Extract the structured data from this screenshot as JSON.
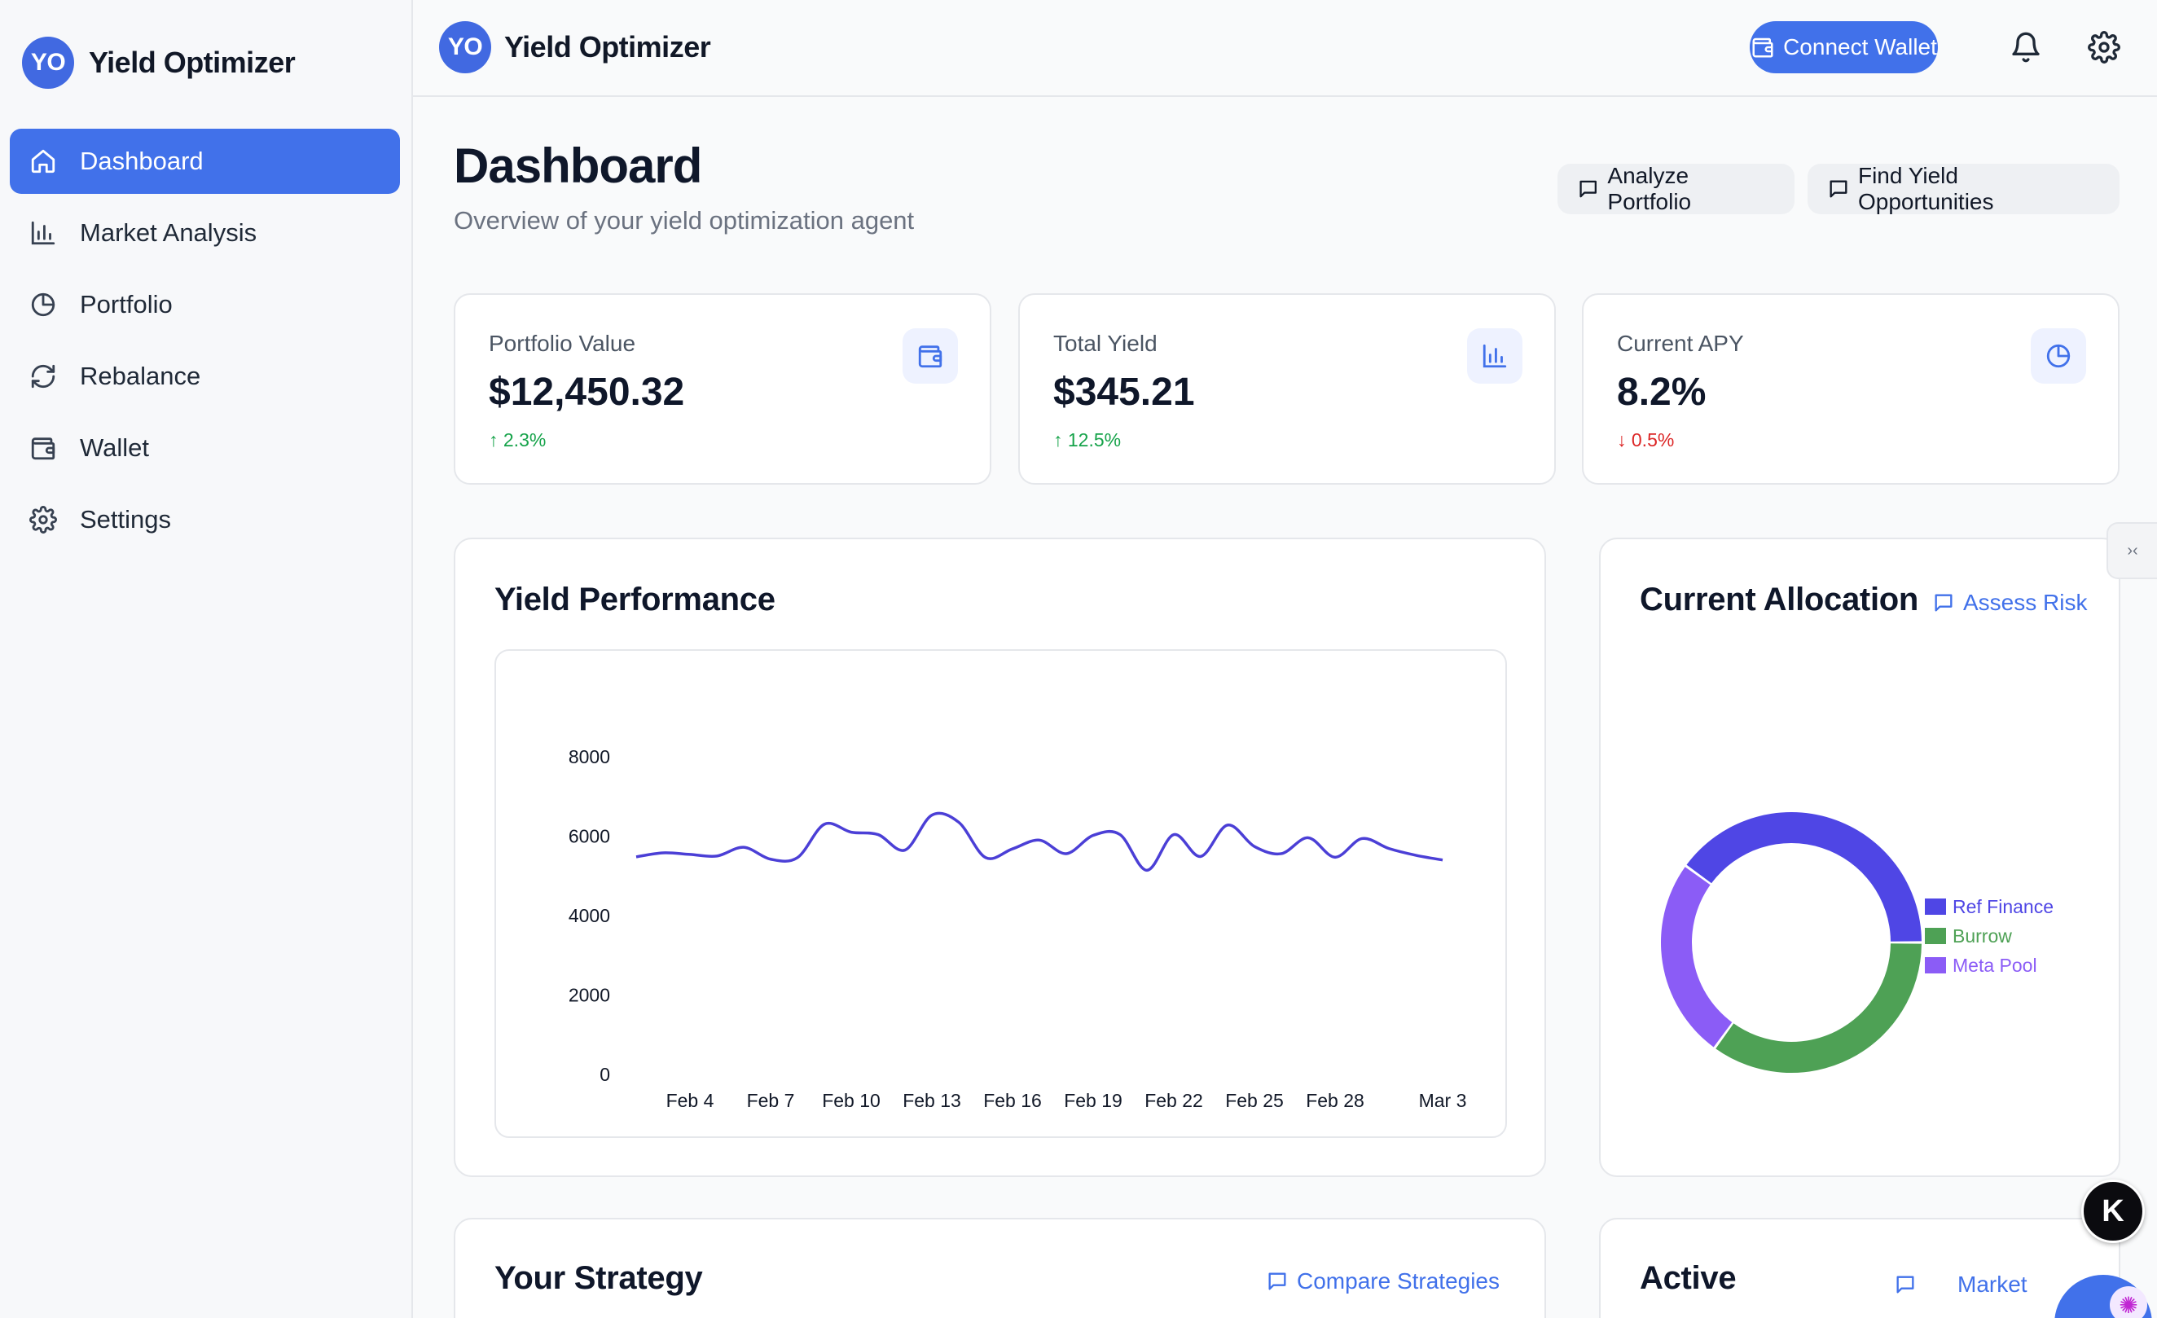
{
  "app": {
    "logo_initials": "YO",
    "name": "Yield Optimizer"
  },
  "sidebar": {
    "items": [
      {
        "label": "Dashboard",
        "icon": "home-icon",
        "active": true
      },
      {
        "label": "Market Analysis",
        "icon": "bar-chart-icon"
      },
      {
        "label": "Portfolio",
        "icon": "pie-chart-icon"
      },
      {
        "label": "Rebalance",
        "icon": "refresh-icon"
      },
      {
        "label": "Wallet",
        "icon": "wallet-icon"
      },
      {
        "label": "Settings",
        "icon": "gear-icon"
      }
    ]
  },
  "header": {
    "connect_wallet": "Connect Wallet"
  },
  "page": {
    "title": "Dashboard",
    "subtitle": "Overview of your yield optimization agent",
    "actions": {
      "analyze": "Analyze Portfolio",
      "find": "Find Yield Opportunities"
    }
  },
  "stats": [
    {
      "label": "Portfolio Value",
      "value": "$12,450.32",
      "delta": "↑ 2.3%",
      "trend": "up",
      "icon": "wallet-icon"
    },
    {
      "label": "Total Yield",
      "value": "$345.21",
      "delta": "↑ 12.5%",
      "trend": "up",
      "icon": "bar-chart-icon"
    },
    {
      "label": "Current APY",
      "value": "8.2%",
      "delta": "↓ 0.5%",
      "trend": "down",
      "icon": "pie-chart-icon"
    }
  ],
  "yield_panel": {
    "title": "Yield Performance"
  },
  "allocation_panel": {
    "title": "Current Allocation",
    "link": "Assess Risk"
  },
  "strategy_panel": {
    "title": "Your Strategy",
    "link": "Compare Strategies"
  },
  "protocols_panel": {
    "title": "Active",
    "link": "Market"
  },
  "widgets": {
    "k_badge": "K"
  },
  "colors": {
    "accent": "#4171ea",
    "up": "#16a34a",
    "down": "#dc2626",
    "line": "#4b3fd6"
  },
  "chart_data": [
    {
      "type": "line",
      "x": [
        "Feb 2",
        "Feb 3",
        "Feb 4",
        "Feb 5",
        "Feb 6",
        "Feb 7",
        "Feb 8",
        "Feb 9",
        "Feb 10",
        "Feb 11",
        "Feb 12",
        "Feb 13",
        "Feb 14",
        "Feb 15",
        "Feb 16",
        "Feb 17",
        "Feb 18",
        "Feb 19",
        "Feb 20",
        "Feb 21",
        "Feb 22",
        "Feb 23",
        "Feb 24",
        "Feb 25",
        "Feb 26",
        "Feb 27",
        "Feb 28",
        "Feb 29",
        "Mar 1",
        "Mar 2",
        "Mar 3"
      ],
      "x_ticks": [
        "Feb 4",
        "Feb 7",
        "Feb 10",
        "Feb 13",
        "Feb 16",
        "Feb 19",
        "Feb 22",
        "Feb 25",
        "Feb 28",
        "Mar 3"
      ],
      "series": [
        {
          "values": [
            5480,
            5580,
            5540,
            5500,
            5720,
            5420,
            5460,
            6300,
            6100,
            6040,
            5650,
            6530,
            6350,
            5460,
            5680,
            5900,
            5560,
            6020,
            6040,
            5140,
            6040,
            5490,
            6280,
            5740,
            5560,
            5960,
            5470,
            5940,
            5690,
            5520,
            5400
          ]
        }
      ],
      "ylim": [
        0,
        8000
      ],
      "y_ticks": [
        0,
        2000,
        4000,
        6000,
        8000
      ],
      "grid": false
    },
    {
      "type": "pie",
      "labels": [
        "Ref Finance",
        "Burrow",
        "Meta Pool"
      ],
      "values": [
        40,
        35,
        25
      ],
      "colors": [
        "#4f46e5",
        "#4ea155",
        "#8b5cf6"
      ],
      "donut": true,
      "legend": "right"
    }
  ]
}
